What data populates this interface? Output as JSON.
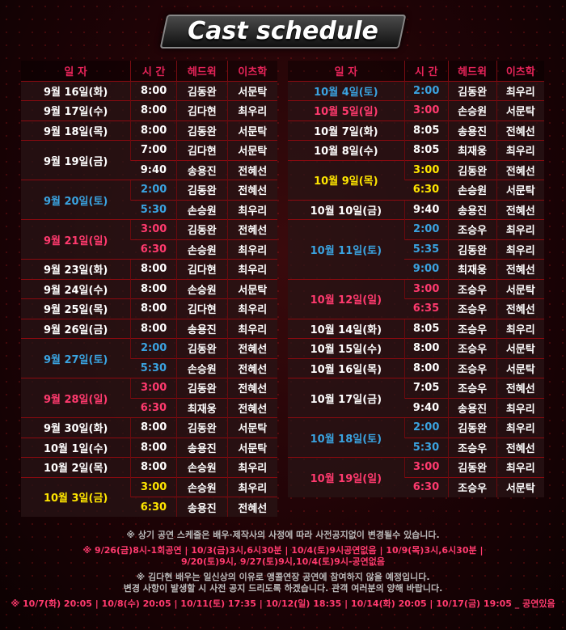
{
  "title": "Cast schedule",
  "headers": [
    "일 자",
    "시 간",
    "헤드윅",
    "이츠학"
  ],
  "colors": {
    "weekday": "#ffffff",
    "saturday": "#3aa3e0",
    "sunday": "#ff3a6e",
    "holiday": "#ffe600",
    "header": "#e8245a"
  },
  "left": [
    {
      "date": "9월 16일(화)",
      "c": "w",
      "rows": [
        [
          "8:00",
          "김동완",
          "서문탁"
        ]
      ]
    },
    {
      "date": "9월 17일(수)",
      "c": "w",
      "rows": [
        [
          "8:00",
          "김다현",
          "최우리"
        ]
      ]
    },
    {
      "date": "9월 18일(목)",
      "c": "w",
      "rows": [
        [
          "8:00",
          "김동완",
          "서문탁"
        ]
      ]
    },
    {
      "date": "9월 19일(금)",
      "c": "w",
      "rows": [
        [
          "7:00",
          "김다현",
          "서문탁"
        ],
        [
          "9:40",
          "송용진",
          "전혜선"
        ]
      ]
    },
    {
      "date": "9월 20일(토)",
      "c": "b",
      "rows": [
        [
          "2:00",
          "김동완",
          "전혜선"
        ],
        [
          "5:30",
          "손승원",
          "최우리"
        ]
      ]
    },
    {
      "date": "9월 21일(일)",
      "c": "p",
      "rows": [
        [
          "3:00",
          "김동완",
          "전혜선"
        ],
        [
          "6:30",
          "손승원",
          "최우리"
        ]
      ]
    },
    {
      "date": "9월 23일(화)",
      "c": "w",
      "rows": [
        [
          "8:00",
          "김다현",
          "최우리"
        ]
      ]
    },
    {
      "date": "9월 24일(수)",
      "c": "w",
      "rows": [
        [
          "8:00",
          "손승원",
          "서문탁"
        ]
      ]
    },
    {
      "date": "9월 25일(목)",
      "c": "w",
      "rows": [
        [
          "8:00",
          "김다현",
          "최우리"
        ]
      ]
    },
    {
      "date": "9월 26일(금)",
      "c": "w",
      "rows": [
        [
          "8:00",
          "송용진",
          "최우리"
        ]
      ]
    },
    {
      "date": "9월 27일(토)",
      "c": "b",
      "rows": [
        [
          "2:00",
          "김동완",
          "전혜선"
        ],
        [
          "5:30",
          "손승원",
          "전혜선"
        ]
      ]
    },
    {
      "date": "9월 28일(일)",
      "c": "p",
      "rows": [
        [
          "3:00",
          "김동완",
          "전혜선"
        ],
        [
          "6:30",
          "최재웅",
          "전혜선"
        ]
      ]
    },
    {
      "date": "9월 30일(화)",
      "c": "w",
      "rows": [
        [
          "8:00",
          "김동완",
          "서문탁"
        ]
      ]
    },
    {
      "date": "10월 1일(수)",
      "c": "w",
      "rows": [
        [
          "8:00",
          "송용진",
          "서문탁"
        ]
      ]
    },
    {
      "date": "10월 2일(목)",
      "c": "w",
      "rows": [
        [
          "8:00",
          "손승원",
          "최우리"
        ]
      ]
    },
    {
      "date": "10월 3일(금)",
      "c": "y",
      "rows": [
        [
          "3:00",
          "손승원",
          "최우리"
        ],
        [
          "6:30",
          "송용진",
          "전혜선"
        ]
      ]
    }
  ],
  "right": [
    {
      "date": "10월 4일(토)",
      "c": "b",
      "rows": [
        [
          "2:00",
          "김동완",
          "최우리"
        ]
      ]
    },
    {
      "date": "10월 5일(일)",
      "c": "p",
      "rows": [
        [
          "3:00",
          "손승원",
          "서문탁"
        ]
      ]
    },
    {
      "date": "10월 7일(화)",
      "c": "w",
      "rows": [
        [
          "8:05",
          "송용진",
          "전혜선"
        ]
      ]
    },
    {
      "date": "10월 8일(수)",
      "c": "w",
      "rows": [
        [
          "8:05",
          "최재웅",
          "최우리"
        ]
      ]
    },
    {
      "date": "10월 9일(목)",
      "c": "y",
      "rows": [
        [
          "3:00",
          "김동완",
          "전혜선"
        ],
        [
          "6:30",
          "손승원",
          "서문탁"
        ]
      ]
    },
    {
      "date": "10월 10일(금)",
      "c": "w",
      "rows": [
        [
          "9:40",
          "송용진",
          "전혜선"
        ]
      ]
    },
    {
      "date": "10월 11일(토)",
      "c": "b",
      "rows": [
        [
          "2:00",
          "조승우",
          "최우리"
        ],
        [
          "5:35",
          "김동완",
          "최우리"
        ],
        [
          "9:00",
          "최재웅",
          "전혜선"
        ]
      ]
    },
    {
      "date": "10월 12일(일)",
      "c": "p",
      "rows": [
        [
          "3:00",
          "조승우",
          "서문탁"
        ],
        [
          "6:35",
          "조승우",
          "전혜선"
        ]
      ]
    },
    {
      "date": "10월 14일(화)",
      "c": "w",
      "rows": [
        [
          "8:05",
          "조승우",
          "최우리"
        ]
      ]
    },
    {
      "date": "10월 15일(수)",
      "c": "w",
      "rows": [
        [
          "8:00",
          "조승우",
          "서문탁"
        ]
      ]
    },
    {
      "date": "10월 16일(목)",
      "c": "w",
      "rows": [
        [
          "8:00",
          "조승우",
          "서문탁"
        ]
      ]
    },
    {
      "date": "10월 17일(금)",
      "c": "w",
      "rows": [
        [
          "7:05",
          "조승우",
          "전혜선"
        ],
        [
          "9:40",
          "송용진",
          "최우리"
        ]
      ]
    },
    {
      "date": "10월 18일(토)",
      "c": "b",
      "rows": [
        [
          "2:00",
          "김동완",
          "최우리"
        ],
        [
          "5:30",
          "조승우",
          "전혜선"
        ]
      ]
    },
    {
      "date": "10월 19일(일)",
      "c": "p",
      "rows": [
        [
          "3:00",
          "김동완",
          "최우리"
        ],
        [
          "6:30",
          "조승우",
          "서문탁"
        ]
      ]
    }
  ],
  "notes": {
    "n1": "※ 상기 공연 스케줄은 배우·제작사의 사정에 따라 사전공지없이 변경될수 있습니다.",
    "n2a": "※  9/26(금)8시-1회공연 | 10/3(금)3시,6시30분 | 10/4(토)9시공연없음 | 10/9(목)3시,6시30분 |",
    "n2b": "9/20(토)9시, 9/27(토)9시,10/4(토)9시-공연없음",
    "n3a": "※ 김다현 배우는 일신상의 이유로 앵콜연장 공연에 참여하지 않을 예정입니다.",
    "n3b": "변경 사항이 발생할 시 사전 공지 드리도록 하겠습니다. 관객 여러분의 양해 바랍니다.",
    "n4": "※  10/7(화) 20:05 | 10/8(수) 20:05 | 10/11(토) 17:35  |  10/12(일) 18:35 | 10/14(화) 20:05 | 10/17(금) 19:05 _ 공연있음"
  }
}
